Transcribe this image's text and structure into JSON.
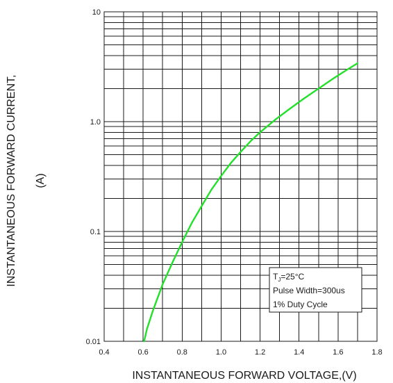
{
  "chart_data": {
    "type": "line",
    "xlabel": "INSTANTANEOUS FORWARD VOLTAGE,(V)",
    "ylabel_line1": "INSTANTANEOUS FORWARD CURRENT,",
    "ylabel_line2": "(A)",
    "xlim": [
      0.4,
      1.8
    ],
    "ylim": [
      0.01,
      10
    ],
    "yscale": "log",
    "grid": true,
    "x_ticks": [
      0.4,
      0.6,
      0.8,
      1.0,
      1.2,
      1.4,
      1.6,
      1.8
    ],
    "x_tick_labels": [
      "0.4",
      "0.6",
      "0.8",
      "1.0",
      "1.2",
      "1.4",
      "1.6",
      "1.8"
    ],
    "y_ticks": [
      0.01,
      0.1,
      1.0,
      10
    ],
    "y_tick_labels": [
      "0.01",
      "0.1",
      "1.0",
      "10"
    ],
    "series": [
      {
        "color": "#22e02a",
        "x": [
          0.605,
          0.62,
          0.65,
          0.7,
          0.75,
          0.8,
          0.85,
          0.9,
          0.95,
          1.0,
          1.05,
          1.1,
          1.15,
          1.2,
          1.28,
          1.35,
          1.42,
          1.5,
          1.58,
          1.65,
          1.7
        ],
        "y": [
          0.01,
          0.013,
          0.019,
          0.033,
          0.052,
          0.08,
          0.12,
          0.17,
          0.24,
          0.32,
          0.42,
          0.53,
          0.66,
          0.8,
          1.05,
          1.3,
          1.6,
          2.0,
          2.5,
          3.0,
          3.4
        ]
      }
    ],
    "legend": {
      "position": "bottom-right",
      "tj_main": "T",
      "tj_sub": "J",
      "tj_rest": "=25°C",
      "line2": "Pulse Width=300us",
      "line3": "1% Duty Cycle"
    }
  }
}
